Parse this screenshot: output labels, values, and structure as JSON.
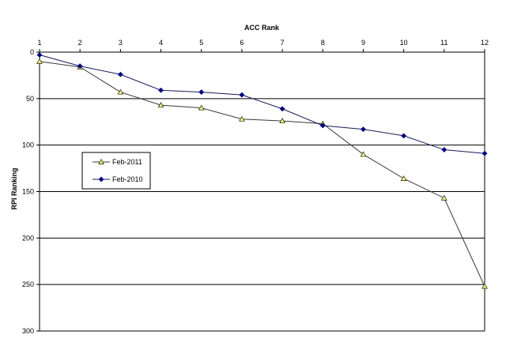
{
  "chart_data": {
    "type": "line",
    "xlabel": "ACC Rank",
    "ylabel": "RPI Ranking",
    "x": [
      1,
      2,
      3,
      4,
      5,
      6,
      7,
      8,
      9,
      10,
      11,
      12
    ],
    "x_ticks": [
      "1",
      "2",
      "3",
      "4",
      "5",
      "6",
      "7",
      "8",
      "9",
      "10",
      "11",
      "12"
    ],
    "y_ticks": [
      "0",
      "50",
      "100",
      "150",
      "200",
      "250",
      "300"
    ],
    "ylim": [
      0,
      300
    ],
    "y_reversed": true,
    "x_axis_position": "top",
    "grid": "horizontal",
    "legend_position": "left",
    "series": [
      {
        "name": "Feb-2011",
        "marker": "triangle",
        "marker_color": "#ffff99",
        "line_color": "#3a3a3a",
        "values": [
          10,
          16,
          43,
          57,
          60,
          72,
          74,
          77,
          110,
          136,
          157,
          252
        ]
      },
      {
        "name": "Feb-2010",
        "marker": "diamond",
        "marker_color": "#000080",
        "line_color": "#1a1a5a",
        "values": [
          3,
          15,
          24,
          41,
          43,
          46,
          61,
          79,
          83,
          90,
          105,
          109
        ]
      }
    ]
  }
}
